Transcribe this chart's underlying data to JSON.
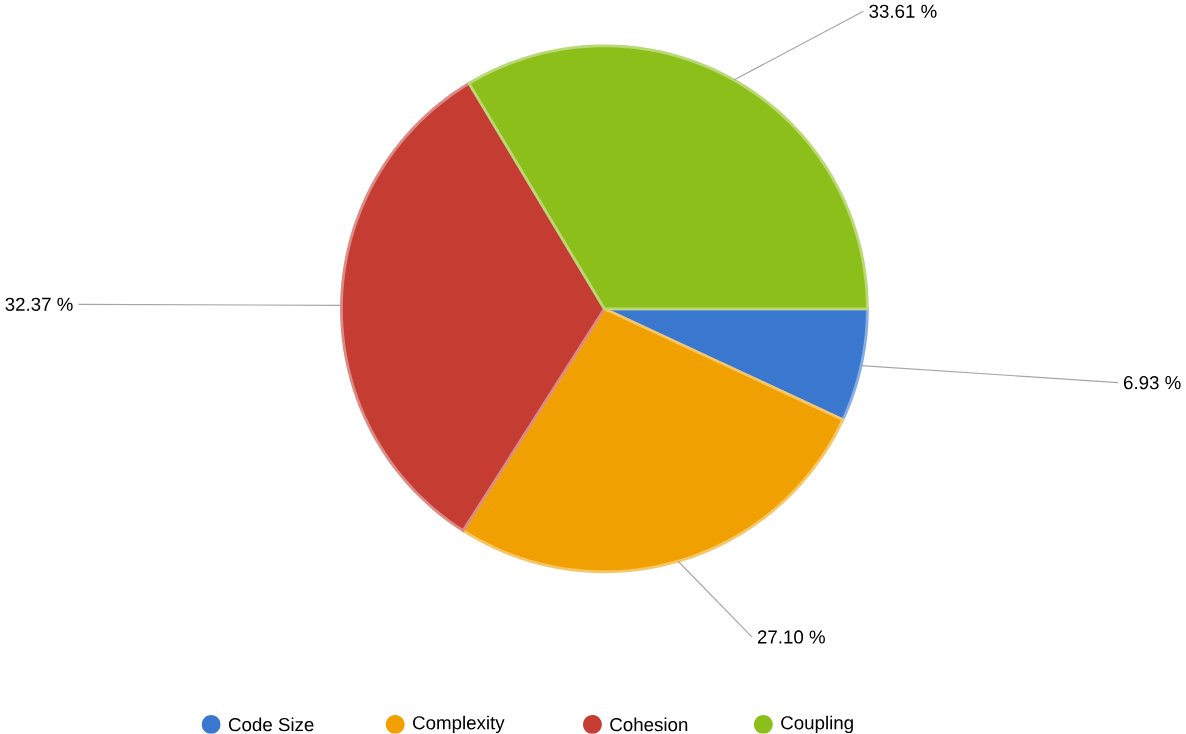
{
  "chart_data": {
    "type": "pie",
    "categories": [
      "Code Size",
      "Complexity",
      "Cohesion",
      "Coupling"
    ],
    "values": [
      6.93,
      27.1,
      32.37,
      33.61
    ],
    "value_labels": [
      "6.93 %",
      "27.10 %",
      "32.37 %",
      "33.61 %"
    ],
    "colors": [
      "#3a78d0",
      "#f0a000",
      "#c43c32",
      "#8cbf1a"
    ],
    "legend": "bottom"
  }
}
